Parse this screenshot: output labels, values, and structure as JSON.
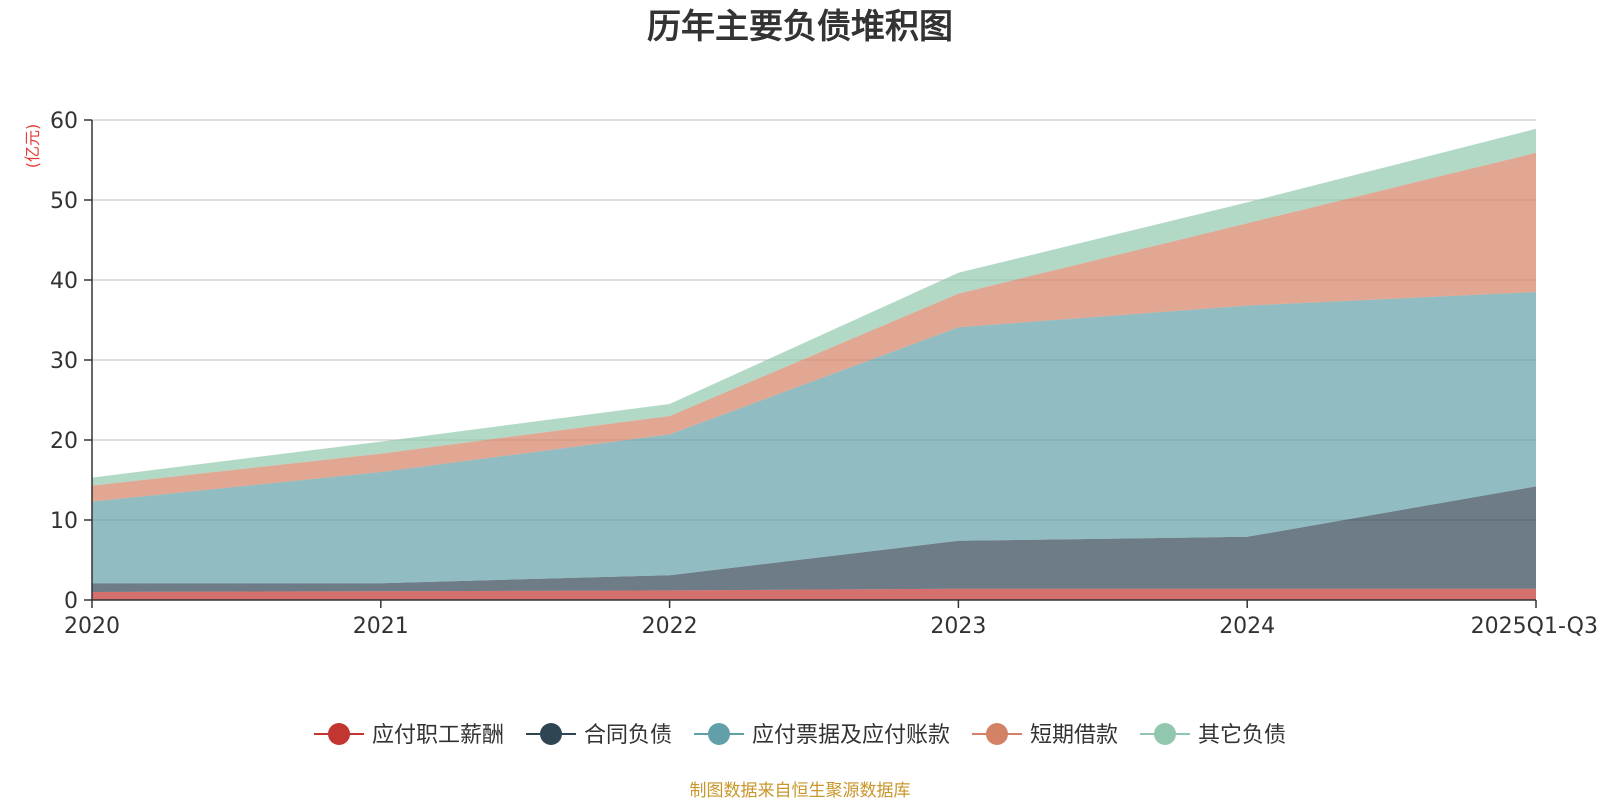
{
  "chart_data": {
    "type": "area",
    "stacked": true,
    "title": "历年主要负债堆积图",
    "y_unit": "(亿元)",
    "categories": [
      "2020",
      "2021",
      "2022",
      "2023",
      "2024",
      "2025Q1-Q3"
    ],
    "ylim": [
      0,
      60
    ],
    "yticks": [
      0,
      10,
      20,
      30,
      40,
      50,
      60
    ],
    "grid": true,
    "legend_position": "bottom",
    "series": [
      {
        "name": "应付职工薪酬",
        "color": "#c23531",
        "values": [
          1.0,
          1.1,
          1.2,
          1.4,
          1.4,
          1.4
        ]
      },
      {
        "name": "合同负债",
        "color": "#2f4554",
        "values": [
          1.1,
          1.0,
          1.9,
          6.0,
          6.5,
          12.8
        ]
      },
      {
        "name": "应付票据及应付账款",
        "color": "#61a0a8",
        "values": [
          10.2,
          13.9,
          17.6,
          26.7,
          28.9,
          24.3
        ]
      },
      {
        "name": "短期借款",
        "color": "#d48265",
        "values": [
          2.0,
          2.3,
          2.3,
          4.2,
          10.3,
          17.4
        ]
      },
      {
        "name": "其它负债",
        "color": "#91c7ae",
        "values": [
          1.0,
          1.5,
          1.5,
          2.6,
          2.6,
          3.0
        ]
      }
    ],
    "source_note": "制图数据来自恒生聚源数据库"
  }
}
